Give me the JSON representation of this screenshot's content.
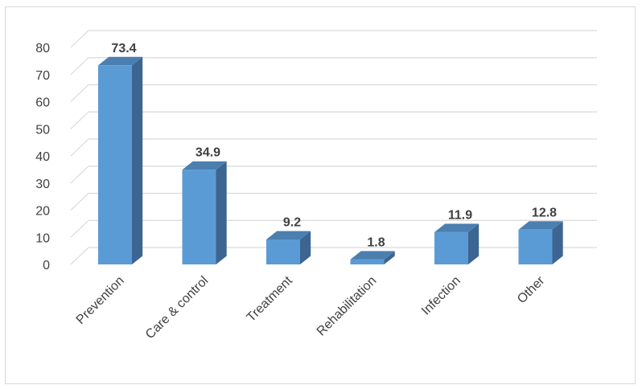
{
  "chart_data": {
    "type": "bar",
    "style": "3d-column",
    "categories": [
      "Prevention",
      "Care & control",
      "Treatment",
      "Rehabilitation",
      "Infection",
      "Other"
    ],
    "values": [
      73.4,
      34.9,
      9.2,
      1.8,
      11.9,
      12.8
    ],
    "data_labels": [
      "73.4",
      "34.9",
      "9.2",
      "1.8",
      "11.9",
      "12.8"
    ],
    "y_ticks": [
      "0",
      "10",
      "20",
      "30",
      "40",
      "50",
      "60",
      "70",
      "80"
    ],
    "ylim": [
      0,
      80
    ],
    "grid": true,
    "legend": "none",
    "colors": {
      "bar_front": "#5b9bd5",
      "bar_top": "#4a7fb0",
      "bar_side": "#3c6591",
      "grid": "#d9d9d9",
      "text": "#404040"
    }
  }
}
